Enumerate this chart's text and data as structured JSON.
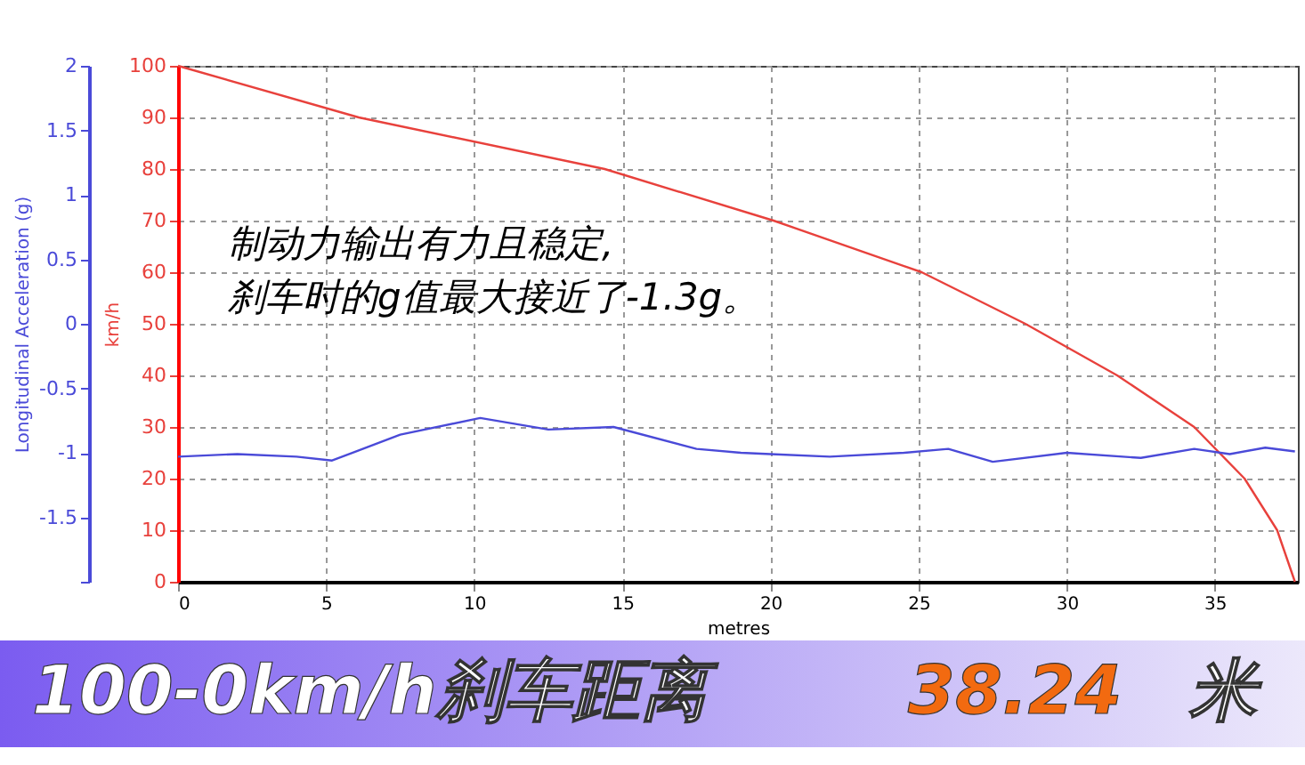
{
  "chart_data": {
    "type": "line",
    "xlabel": "metres",
    "ylabel": "km/h",
    "y2label": "Longitudinal Acceleration (g)",
    "xlim": [
      0,
      37.8
    ],
    "xticks": [
      0,
      5,
      10,
      15,
      20,
      25,
      30,
      35
    ],
    "ylim": [
      0,
      100
    ],
    "yticks": [
      0,
      10,
      20,
      30,
      40,
      50,
      60,
      70,
      80,
      90,
      100
    ],
    "y2lim": [
      -2,
      2
    ],
    "y2ticks": [
      {
        "value": -2,
        "label": null
      },
      -1.5,
      -1,
      -0.5,
      0,
      0.5,
      1,
      1.5,
      2
    ],
    "grid": true,
    "marker": "none",
    "line_style": "solid",
    "series": [
      {
        "color": "#e8413c",
        "x": [
          0,
          6.1,
          14.4,
          20.1,
          25.1,
          28.6,
          31.7,
          34.3,
          36.0,
          37.1,
          37.7
        ],
        "values": [
          100,
          90,
          80,
          70,
          60,
          50,
          40,
          30,
          20,
          10,
          0
        ]
      },
      {
        "color": "#4a4ad8",
        "axis": "y2",
        "x": [
          0,
          2,
          4,
          5.2,
          7.5,
          10.2,
          12.5,
          14.7,
          17.5,
          19,
          20,
          22,
          24.5,
          26,
          27.5,
          30,
          32.5,
          34.3,
          35.5,
          36.7,
          37.7
        ],
        "values": [
          -1.03,
          -1.01,
          -1.03,
          -1.06,
          -0.86,
          -0.73,
          -0.82,
          -0.8,
          -0.97,
          -1.0,
          -1.01,
          -1.03,
          -1.0,
          -0.97,
          -1.07,
          -1.0,
          -1.04,
          -0.97,
          -1.01,
          -0.96,
          -0.99
        ]
      }
    ],
    "annotations": [
      "制动力输出有力且稳定,\n刹车时的g值最大接近了-1.3g。",
      "100-0km/h刹车距离",
      "38.24",
      "米"
    ]
  }
}
